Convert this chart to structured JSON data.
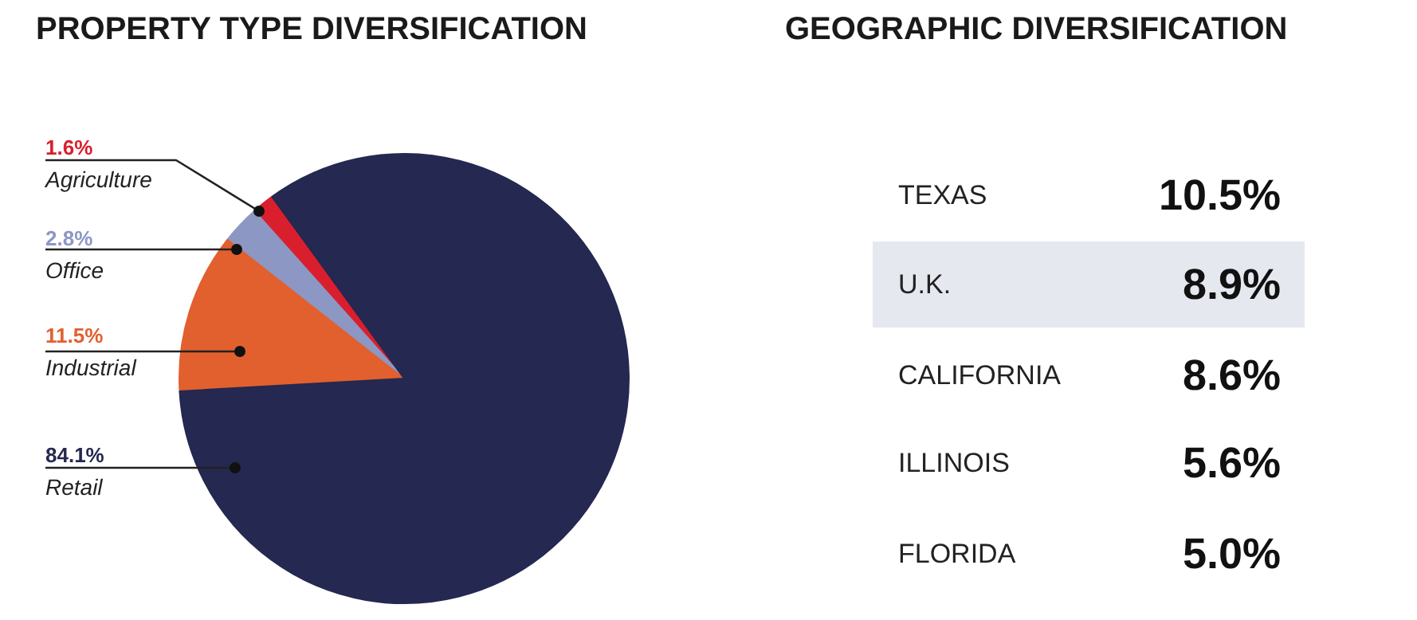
{
  "chart_data": [
    {
      "type": "pie",
      "title": "PROPERTY TYPE DIVERSIFICATION",
      "categories": [
        "Agriculture",
        "Office",
        "Industrial",
        "Retail"
      ],
      "values": [
        1.6,
        2.8,
        11.5,
        84.1
      ],
      "colors": [
        "#d91f2d",
        "#8c97c4",
        "#e2602e",
        "#252850"
      ],
      "value_labels": [
        "1.6%",
        "2.8%",
        "11.5%",
        "84.1%"
      ]
    },
    {
      "type": "other",
      "title": "GEOGRAPHIC DIVERSIFICATION",
      "categories": [
        "TEXAS",
        "U.K.",
        "CALIFORNIA",
        "ILLINOIS",
        "FLORIDA"
      ],
      "value_labels": [
        "10.5%",
        "8.9%",
        "8.6%",
        "5.6%",
        "5.0%"
      ]
    }
  ]
}
